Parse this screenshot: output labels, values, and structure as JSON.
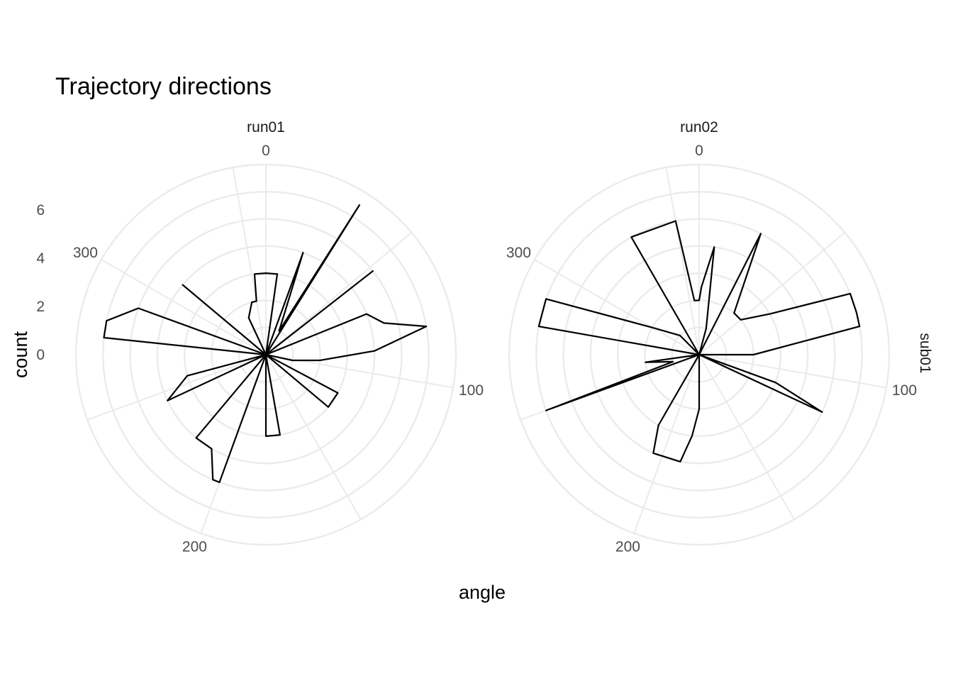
{
  "chart_data": {
    "type": "area",
    "coord": "polar",
    "title": "Trajectory directions",
    "xlabel": "angle",
    "ylabel": "count",
    "row_strip": "sub01",
    "theta_ticks": [
      "0",
      "100",
      "200",
      "300"
    ],
    "r_ticks": [
      "0",
      "2",
      "4",
      "6"
    ],
    "xlim": [
      0,
      360
    ],
    "ylim": [
      0,
      7
    ],
    "grid": true,
    "panels": [
      {
        "label": "run01",
        "series": [
          {
            "x": [
              0,
              8,
              15,
              20,
              29,
              32,
              45,
              52,
              58,
              68,
              75,
              80,
              88,
              96,
              102,
              108,
              118,
              130,
              145,
              160,
              170,
              180,
              185,
              192,
              200,
              203,
              210,
              220,
              225,
              232,
              245,
              255,
              260,
              270,
              276,
              282,
              290,
              300,
              310,
              320,
              330,
              335,
              345,
              350,
              352,
              360
            ],
            "y": [
              3,
              3,
              0,
              4,
              1,
              6.5,
              0,
              5,
              0,
              4,
              4.5,
              6,
              4,
              2,
              1,
              0,
              3,
              3,
              0,
              0,
              3,
              3,
              0,
              0,
              5,
              5,
              4,
              4,
              0,
              0,
              4,
              3,
              0,
              0,
              6,
              6,
              5,
              0,
              4,
              0,
              0,
              1.5,
              2,
              2,
              3,
              3
            ]
          }
        ]
      },
      {
        "label": "run02",
        "series": [
          {
            "x": [
              0,
              2,
              8,
              15,
              20,
              27,
              40,
              50,
              60,
              68,
              75,
              80,
              90,
              100,
              110,
              115,
              130,
              140,
              148,
              155,
              165,
              170,
              180,
              185,
              190,
              205,
              210,
              220,
              225,
              232,
              250,
              255,
              262,
              270,
              280,
              290,
              300,
              315,
              320,
              325,
              330,
              350,
              355,
              360
            ],
            "y": [
              2,
              2.5,
              4,
              1,
              0,
              5,
              2,
              2,
              3,
              6,
              6,
              6,
              2,
              0,
              3,
              5,
              0,
              0,
              0,
              0,
              0,
              0,
              2,
              3,
              4,
              4,
              3,
              0,
              0,
              0,
              6,
              1,
              2,
              0,
              6,
              6,
              2,
              1,
              0,
              0,
              5,
              5,
              2,
              2
            ]
          }
        ]
      }
    ]
  }
}
